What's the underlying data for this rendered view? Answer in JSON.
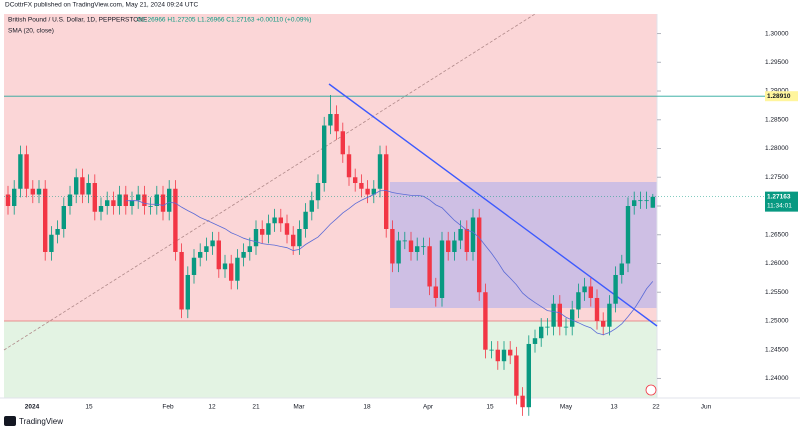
{
  "header": {
    "publisher": "DCottrFX published on TradingView.com, May 21, 2024 09:24 UTC",
    "symbol": "British Pound / U.S. Dollar, 1D, PEPPERSTONE",
    "ohlc": "O1.26966 H1.27205 L1.26966 C1.27163 +0.00110 (+0.09%)",
    "indicator": "SMA (20, close)"
  },
  "footer": {
    "brand": "TradingView"
  },
  "chart_data": {
    "type": "candlestick",
    "ylim": [
      1.2366,
      1.3034
    ],
    "yticks": [
      {
        "value": 1.3,
        "label": "1.30000"
      },
      {
        "value": 1.295,
        "label": "1.29500"
      },
      {
        "value": 1.29,
        "label": "1.29000"
      },
      {
        "value": 1.285,
        "label": "1.28500"
      },
      {
        "value": 1.28,
        "label": "1.28000"
      },
      {
        "value": 1.275,
        "label": "1.27500"
      },
      {
        "value": 1.27,
        "label": "1.27000"
      },
      {
        "value": 1.265,
        "label": "1.26500"
      },
      {
        "value": 1.26,
        "label": "1.26000"
      },
      {
        "value": 1.255,
        "label": "1.25500"
      },
      {
        "value": 1.25,
        "label": "1.25000"
      },
      {
        "value": 1.245,
        "label": "1.24500"
      },
      {
        "value": 1.24,
        "label": "1.24000"
      }
    ],
    "x_labels": [
      "2024",
      "15",
      "Feb",
      "12",
      "21",
      "Mar",
      "18",
      "Apr",
      "15",
      "May",
      "13",
      "22",
      "Jun"
    ],
    "level": {
      "value": 1.2891,
      "label": "1.28910"
    },
    "last": {
      "value": 1.27163,
      "label": "1.27163",
      "countdown": "11:34:01"
    },
    "up_color": "#089981",
    "down_color": "#f23645",
    "sma_color": "#5b6bd6",
    "sma_period": 20,
    "candles": [
      [
        1.272,
        1.2735,
        1.2685,
        1.27
      ],
      [
        1.27,
        1.2745,
        1.2685,
        1.273
      ],
      [
        1.273,
        1.2805,
        1.2715,
        1.279
      ],
      [
        1.279,
        1.2805,
        1.2715,
        1.273
      ],
      [
        1.273,
        1.2745,
        1.2705,
        1.272
      ],
      [
        1.272,
        1.2745,
        1.2705,
        1.273
      ],
      [
        1.273,
        1.2745,
        1.2605,
        1.262
      ],
      [
        1.262,
        1.2665,
        1.2605,
        1.265
      ],
      [
        1.265,
        1.2675,
        1.2635,
        1.266
      ],
      [
        1.266,
        1.2715,
        1.2645,
        1.27
      ],
      [
        1.27,
        1.2735,
        1.2685,
        1.272
      ],
      [
        1.272,
        1.2765,
        1.2705,
        1.275
      ],
      [
        1.275,
        1.2765,
        1.2705,
        1.272
      ],
      [
        1.272,
        1.2755,
        1.2705,
        1.274
      ],
      [
        1.274,
        1.2755,
        1.2675,
        1.269
      ],
      [
        1.269,
        1.2715,
        1.2675,
        1.27
      ],
      [
        1.27,
        1.2725,
        1.2685,
        1.271
      ],
      [
        1.271,
        1.2725,
        1.2685,
        1.27
      ],
      [
        1.27,
        1.2735,
        1.2685,
        1.272
      ],
      [
        1.272,
        1.2735,
        1.2685,
        1.27
      ],
      [
        1.27,
        1.2725,
        1.2685,
        1.271
      ],
      [
        1.271,
        1.2735,
        1.2695,
        1.272
      ],
      [
        1.272,
        1.2735,
        1.2685,
        1.27
      ],
      [
        1.27,
        1.2715,
        1.2685,
        1.27
      ],
      [
        1.27,
        1.2735,
        1.2685,
        1.272
      ],
      [
        1.272,
        1.2735,
        1.2675,
        1.269
      ],
      [
        1.269,
        1.2745,
        1.2675,
        1.273
      ],
      [
        1.273,
        1.2745,
        1.2605,
        1.262
      ],
      [
        1.262,
        1.2635,
        1.2505,
        1.252
      ],
      [
        1.252,
        1.2595,
        1.2505,
        1.258
      ],
      [
        1.258,
        1.2625,
        1.2565,
        1.261
      ],
      [
        1.261,
        1.2635,
        1.2595,
        1.262
      ],
      [
        1.262,
        1.2645,
        1.2605,
        1.263
      ],
      [
        1.263,
        1.2655,
        1.2615,
        1.264
      ],
      [
        1.264,
        1.2655,
        1.2575,
        1.259
      ],
      [
        1.259,
        1.2615,
        1.2575,
        1.26
      ],
      [
        1.26,
        1.2615,
        1.2555,
        1.257
      ],
      [
        1.257,
        1.2625,
        1.2555,
        1.261
      ],
      [
        1.261,
        1.2635,
        1.2595,
        1.262
      ],
      [
        1.262,
        1.2645,
        1.2605,
        1.263
      ],
      [
        1.263,
        1.2675,
        1.2615,
        1.266
      ],
      [
        1.266,
        1.2675,
        1.2635,
        1.265
      ],
      [
        1.265,
        1.2685,
        1.2635,
        1.267
      ],
      [
        1.267,
        1.2695,
        1.2655,
        1.268
      ],
      [
        1.268,
        1.2695,
        1.2655,
        1.267
      ],
      [
        1.267,
        1.2685,
        1.2635,
        1.265
      ],
      [
        1.265,
        1.2665,
        1.2615,
        1.263
      ],
      [
        1.263,
        1.2675,
        1.2615,
        1.266
      ],
      [
        1.266,
        1.2705,
        1.2645,
        1.269
      ],
      [
        1.269,
        1.2725,
        1.2675,
        1.271
      ],
      [
        1.271,
        1.2755,
        1.2695,
        1.274
      ],
      [
        1.274,
        1.2855,
        1.2725,
        1.284
      ],
      [
        1.284,
        1.2893,
        1.2825,
        1.286
      ],
      [
        1.286,
        1.2875,
        1.2815,
        1.283
      ],
      [
        1.283,
        1.2845,
        1.2775,
        1.279
      ],
      [
        1.279,
        1.2805,
        1.2735,
        1.275
      ],
      [
        1.275,
        1.2765,
        1.2725,
        1.274
      ],
      [
        1.274,
        1.2755,
        1.2715,
        1.273
      ],
      [
        1.273,
        1.2745,
        1.2705,
        1.272
      ],
      [
        1.272,
        1.2745,
        1.2705,
        1.273
      ],
      [
        1.273,
        1.2805,
        1.2715,
        1.279
      ],
      [
        1.279,
        1.2805,
        1.2645,
        1.266
      ],
      [
        1.266,
        1.2675,
        1.2585,
        1.26
      ],
      [
        1.26,
        1.2655,
        1.2585,
        1.264
      ],
      [
        1.264,
        1.2655,
        1.2625,
        1.264
      ],
      [
        1.264,
        1.2655,
        1.2605,
        1.262
      ],
      [
        1.262,
        1.2645,
        1.2605,
        1.263
      ],
      [
        1.263,
        1.2645,
        1.2615,
        1.263
      ],
      [
        1.263,
        1.2645,
        1.2545,
        1.256
      ],
      [
        1.256,
        1.2575,
        1.2525,
        1.254
      ],
      [
        1.254,
        1.2655,
        1.2525,
        1.264
      ],
      [
        1.264,
        1.2655,
        1.2605,
        1.262
      ],
      [
        1.262,
        1.2655,
        1.2605,
        1.264
      ],
      [
        1.264,
        1.2675,
        1.2625,
        1.266
      ],
      [
        1.266,
        1.2675,
        1.2605,
        1.262
      ],
      [
        1.262,
        1.2695,
        1.2605,
        1.268
      ],
      [
        1.268,
        1.2695,
        1.2535,
        1.255
      ],
      [
        1.255,
        1.2565,
        1.2435,
        1.245
      ],
      [
        1.245,
        1.2465,
        1.2435,
        1.245
      ],
      [
        1.245,
        1.2465,
        1.2415,
        1.243
      ],
      [
        1.243,
        1.2465,
        1.2415,
        1.245
      ],
      [
        1.245,
        1.2465,
        1.2425,
        1.244
      ],
      [
        1.244,
        1.2455,
        1.2355,
        1.237
      ],
      [
        1.237,
        1.2385,
        1.2335,
        1.235
      ],
      [
        1.235,
        1.2475,
        1.2335,
        1.246
      ],
      [
        1.246,
        1.2485,
        1.2445,
        1.247
      ],
      [
        1.247,
        1.2505,
        1.2455,
        1.249
      ],
      [
        1.249,
        1.2505,
        1.2475,
        1.249
      ],
      [
        1.249,
        1.2545,
        1.2475,
        1.253
      ],
      [
        1.253,
        1.2545,
        1.2475,
        1.249
      ],
      [
        1.249,
        1.2505,
        1.2475,
        1.249
      ],
      [
        1.249,
        1.2535,
        1.2475,
        1.252
      ],
      [
        1.252,
        1.2565,
        1.2505,
        1.255
      ],
      [
        1.255,
        1.2575,
        1.2535,
        1.256
      ],
      [
        1.256,
        1.2575,
        1.2525,
        1.254
      ],
      [
        1.254,
        1.2555,
        1.2485,
        1.25
      ],
      [
        1.25,
        1.2515,
        1.2475,
        1.249
      ],
      [
        1.249,
        1.2545,
        1.2475,
        1.253
      ],
      [
        1.253,
        1.2595,
        1.2515,
        1.258
      ],
      [
        1.258,
        1.2615,
        1.2565,
        1.26
      ],
      [
        1.26,
        1.2715,
        1.2585,
        1.27
      ],
      [
        1.27,
        1.2725,
        1.2685,
        1.271
      ],
      [
        1.271,
        1.2725,
        1.2695,
        1.271
      ],
      [
        1.271,
        1.2725,
        1.2695,
        1.271
      ],
      [
        1.2697,
        1.2721,
        1.2697,
        1.2716
      ]
    ]
  }
}
